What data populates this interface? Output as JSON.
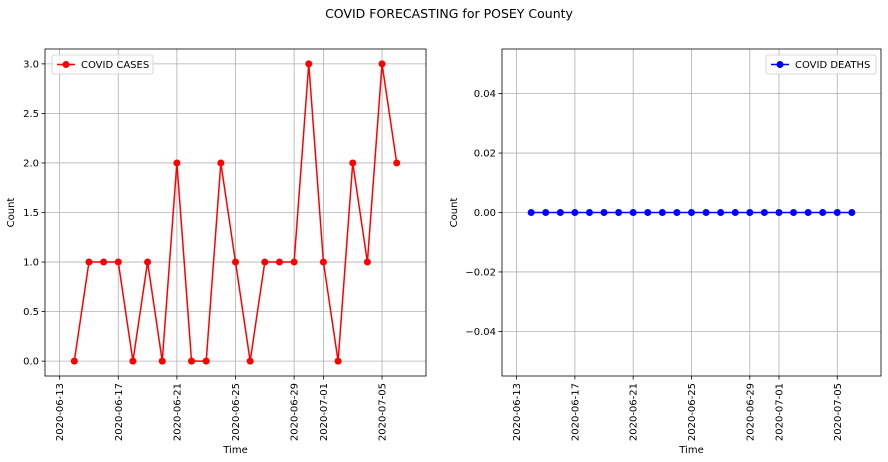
{
  "chart_data": {
    "suptitle": "COVID FORECASTING for POSEY County",
    "subplots": [
      {
        "type": "line",
        "marker": "circle",
        "color": "#ff0000",
        "xlabel": "Time",
        "ylabel": "Count",
        "grid": true,
        "legend_position": "top-left",
        "x_type": "date",
        "xlim": [
          "2020-06-12",
          "2020-07-08"
        ],
        "ylim": [
          -0.15,
          3.15
        ],
        "xticks": [
          "2020-06-13",
          "2020-06-17",
          "2020-06-21",
          "2020-06-25",
          "2020-06-29",
          "2020-07-01",
          "2020-07-05"
        ],
        "yticks": [
          0.0,
          0.5,
          1.0,
          1.5,
          2.0,
          2.5,
          3.0
        ],
        "ytick_labels": [
          "0.0",
          "0.5",
          "1.0",
          "1.5",
          "2.0",
          "2.5",
          "3.0"
        ],
        "series": [
          {
            "name": "COVID CASES",
            "x": [
              "2020-06-14",
              "2020-06-15",
              "2020-06-16",
              "2020-06-17",
              "2020-06-18",
              "2020-06-19",
              "2020-06-20",
              "2020-06-21",
              "2020-06-22",
              "2020-06-23",
              "2020-06-24",
              "2020-06-25",
              "2020-06-26",
              "2020-06-27",
              "2020-06-28",
              "2020-06-29",
              "2020-06-30",
              "2020-07-01",
              "2020-07-02",
              "2020-07-03",
              "2020-07-04",
              "2020-07-05",
              "2020-07-06"
            ],
            "y": [
              0,
              1,
              1,
              1,
              0,
              1,
              0,
              2,
              0,
              0,
              2,
              1,
              0,
              1,
              1,
              1,
              3,
              1,
              0,
              2,
              1,
              3,
              2
            ]
          }
        ]
      },
      {
        "type": "line",
        "marker": "circle",
        "color": "#0000ff",
        "xlabel": "Time",
        "ylabel": "Count",
        "grid": true,
        "legend_position": "top-right",
        "x_type": "date",
        "xlim": [
          "2020-06-12",
          "2020-07-08"
        ],
        "ylim": [
          -0.055,
          0.055
        ],
        "xticks": [
          "2020-06-13",
          "2020-06-17",
          "2020-06-21",
          "2020-06-25",
          "2020-06-29",
          "2020-07-01",
          "2020-07-05"
        ],
        "yticks": [
          -0.04,
          -0.02,
          0.0,
          0.02,
          0.04
        ],
        "ytick_labels": [
          "−0.04",
          "−0.02",
          "0.00",
          "0.02",
          "0.04"
        ],
        "series": [
          {
            "name": "COVID DEATHS",
            "x": [
              "2020-06-14",
              "2020-06-15",
              "2020-06-16",
              "2020-06-17",
              "2020-06-18",
              "2020-06-19",
              "2020-06-20",
              "2020-06-21",
              "2020-06-22",
              "2020-06-23",
              "2020-06-24",
              "2020-06-25",
              "2020-06-26",
              "2020-06-27",
              "2020-06-28",
              "2020-06-29",
              "2020-06-30",
              "2020-07-01",
              "2020-07-02",
              "2020-07-03",
              "2020-07-04",
              "2020-07-05",
              "2020-07-06"
            ],
            "y": [
              0,
              0,
              0,
              0,
              0,
              0,
              0,
              0,
              0,
              0,
              0,
              0,
              0,
              0,
              0,
              0,
              0,
              0,
              0,
              0,
              0,
              0,
              0
            ]
          }
        ]
      }
    ]
  }
}
